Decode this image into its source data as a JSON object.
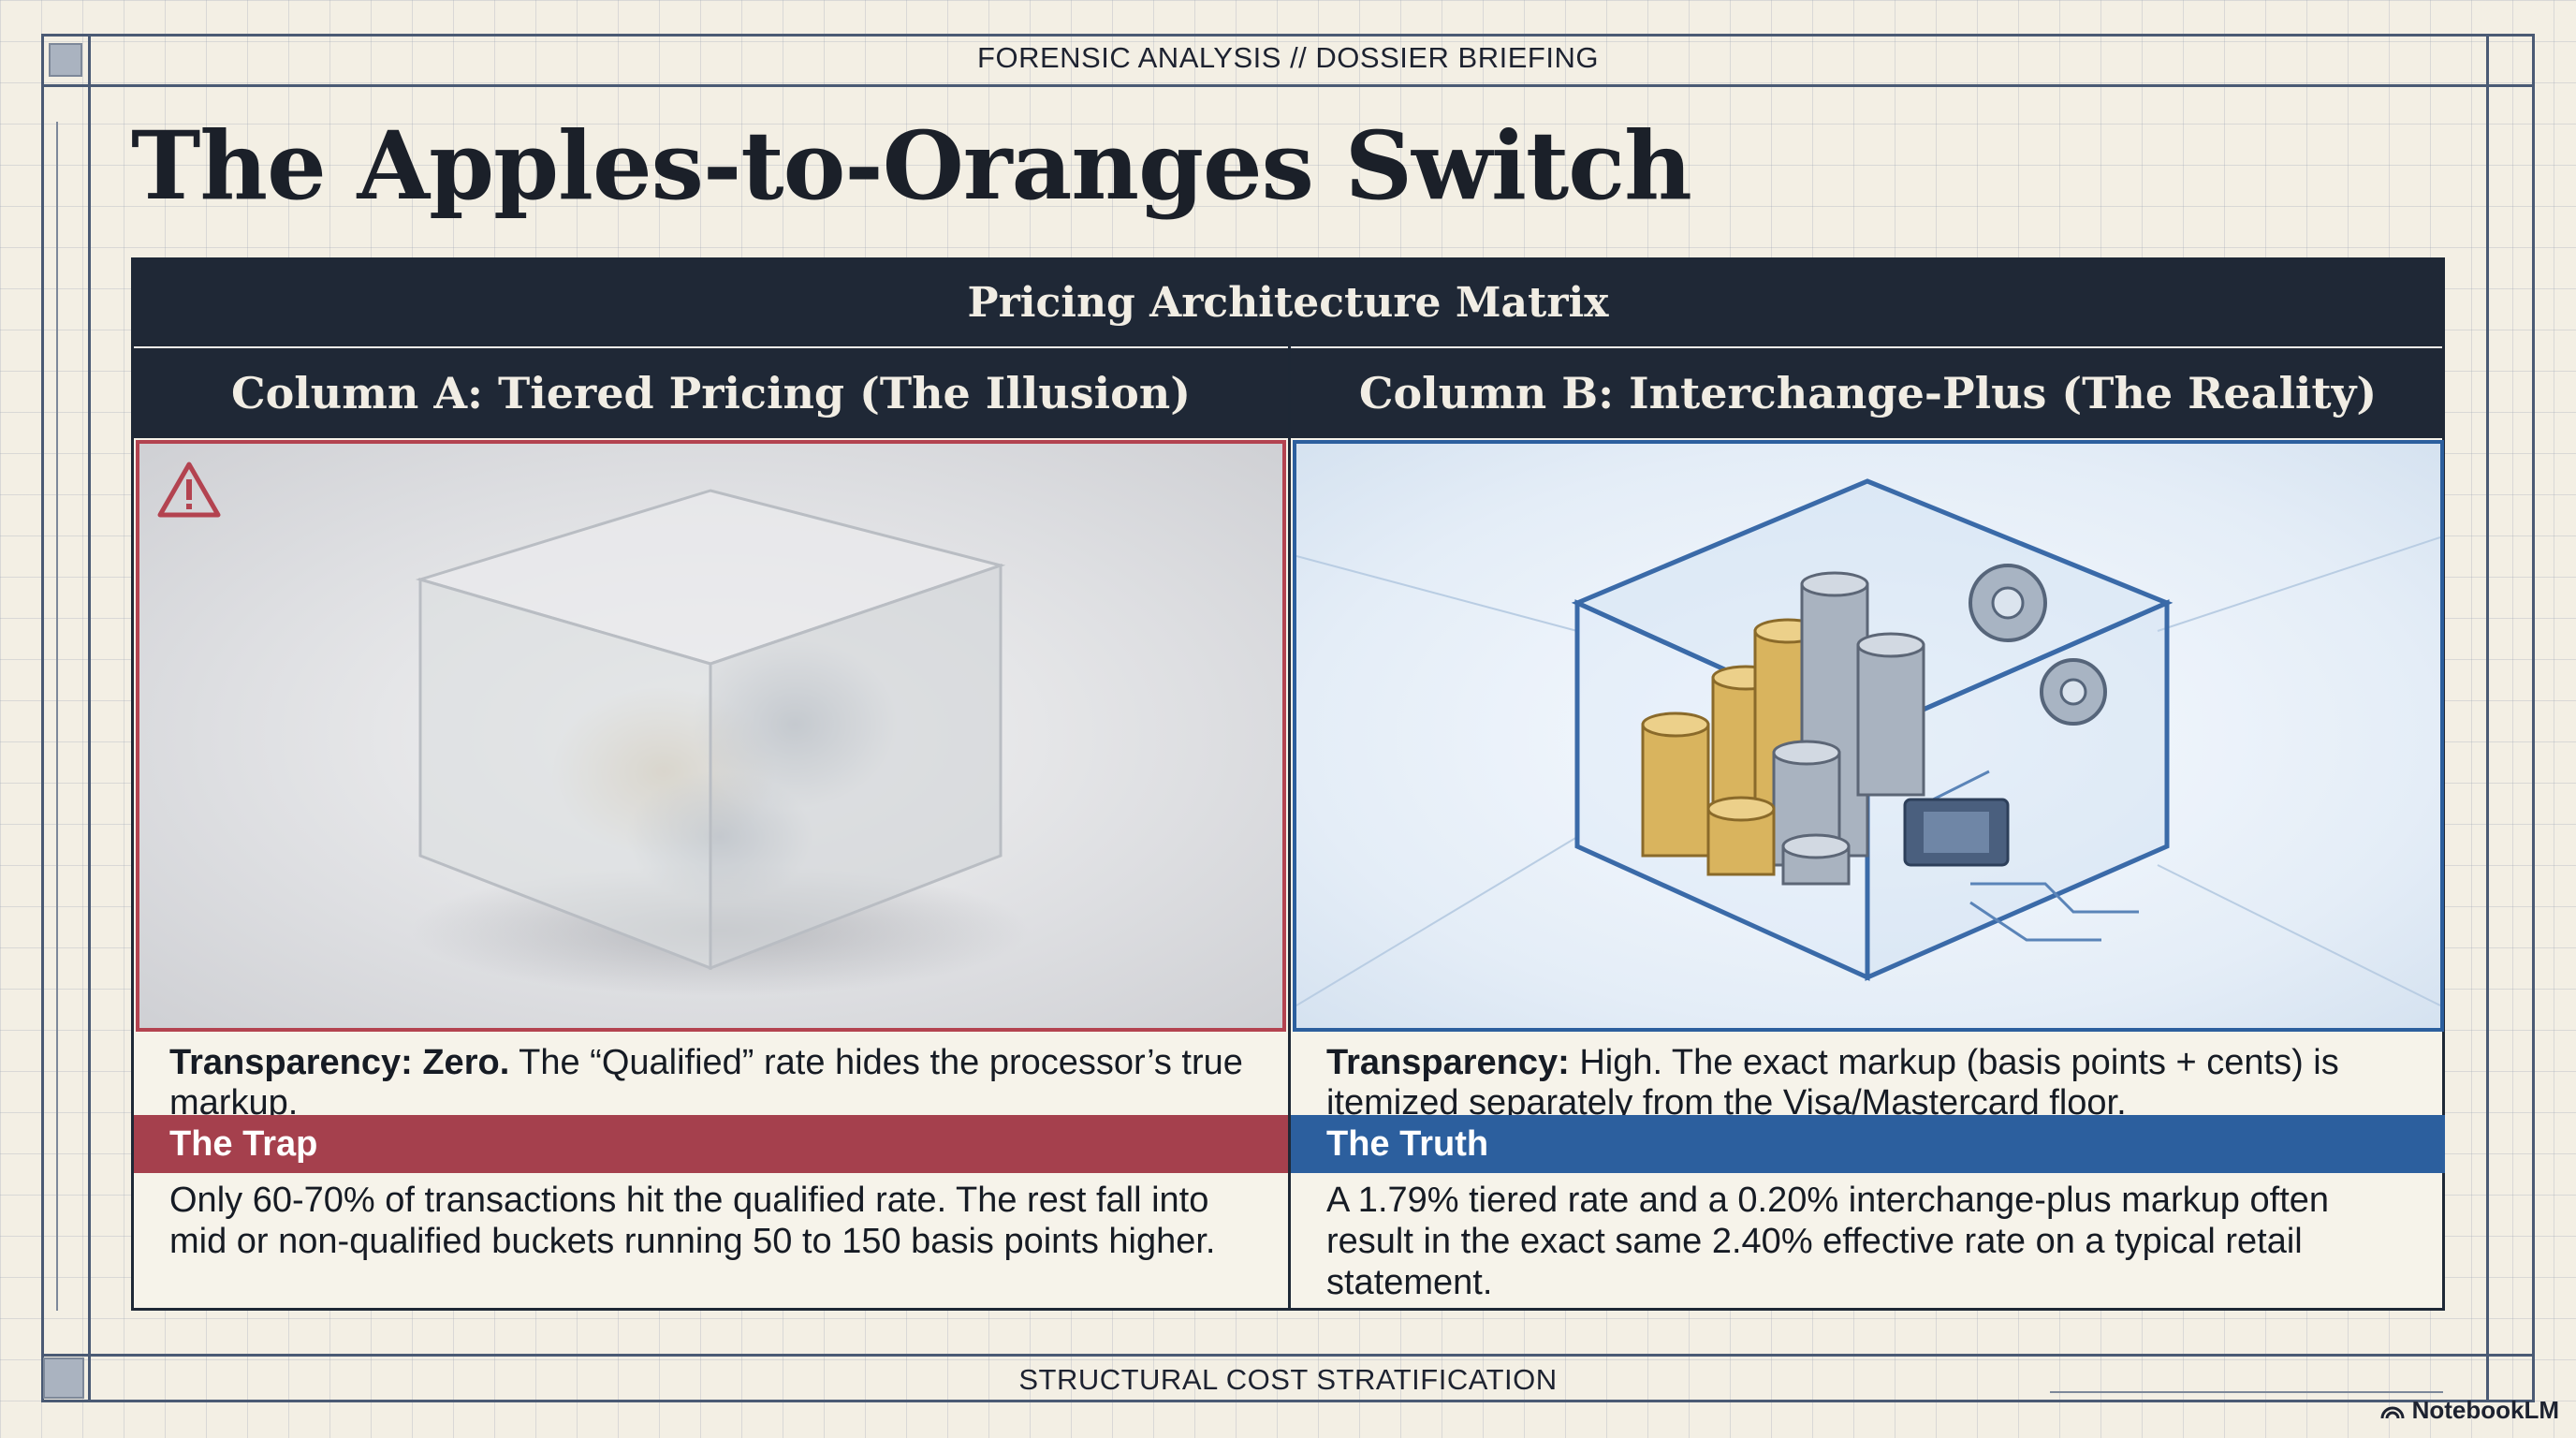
{
  "header": {
    "label": "FORENSIC ANALYSIS // DOSSIER BRIEFING"
  },
  "title": "The Apples-to-Oranges Switch",
  "matrix": {
    "title": "Pricing Architecture Matrix",
    "column_a": {
      "heading": "Column A: Tiered Pricing (The Illusion)",
      "transparency_label": "Transparency: Zero.",
      "transparency_text": " The “Qualified” rate hides the processor’s true markup.",
      "band_label": "The Trap",
      "body": "Only 60-70% of transactions hit the qualified rate. The rest fall into mid or non-qualified buckets running 50 to 150 basis points higher.",
      "icon": "warning-icon"
    },
    "column_b": {
      "heading": "Column B: Interchange-Plus (The Reality)",
      "transparency_label": "Transparency:",
      "transparency_text": " High. The exact markup (basis points + cents) is itemized separately from the Visa/Mastercard floor.",
      "band_label": "The Truth",
      "body": "A 1.79% tiered rate and a 0.20% interchange-plus markup often result in the exact same 2.40% effective rate on a typical retail statement."
    }
  },
  "footer": {
    "label": "STRUCTURAL COST STRATIFICATION"
  },
  "brand": {
    "label": "NotebookLM"
  },
  "colors": {
    "trap": "#a5404d",
    "truth": "#2c5f9e",
    "header_bg": "#1f2836"
  }
}
